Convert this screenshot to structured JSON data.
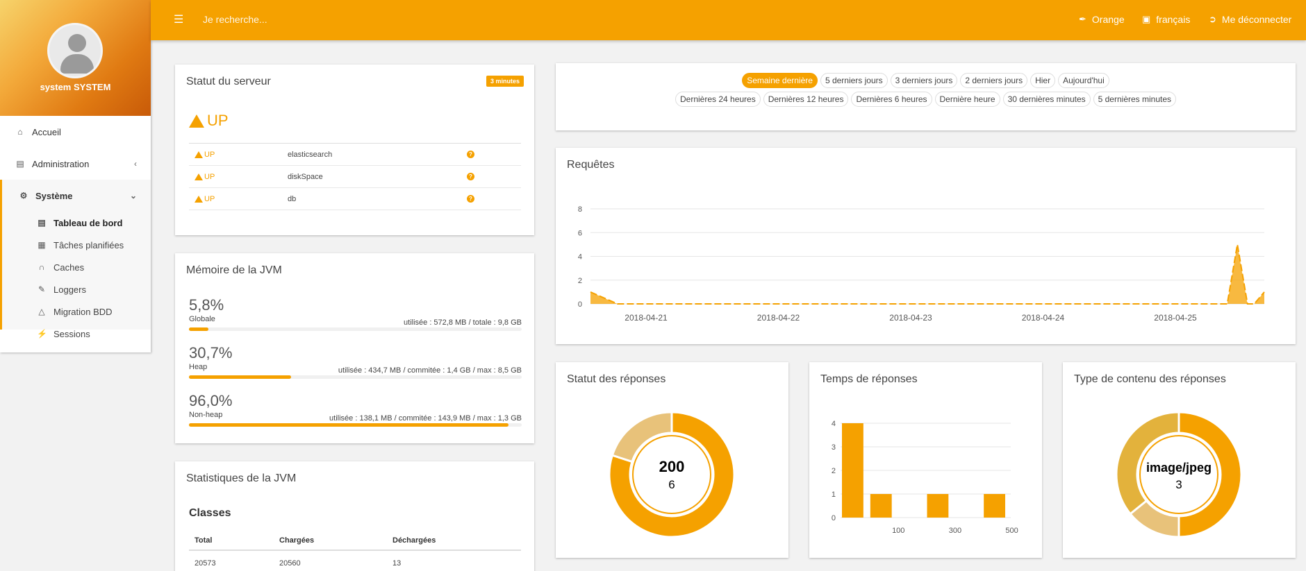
{
  "sidebar": {
    "user_name": "system SYSTEM",
    "items": [
      {
        "label": "Accueil",
        "icon": "home-icon"
      },
      {
        "label": "Administration",
        "icon": "list-icon"
      },
      {
        "label": "Système",
        "icon": "cogs-icon"
      }
    ],
    "sub_items": [
      {
        "label": "Tableau de bord",
        "icon": "bar-chart-icon",
        "active": true
      },
      {
        "label": "Tâches planifiées",
        "icon": "calendar-icon"
      },
      {
        "label": "Caches",
        "icon": "magnet-icon"
      },
      {
        "label": "Loggers",
        "icon": "pencil-icon"
      },
      {
        "label": "Migration BDD",
        "icon": "flask-icon"
      },
      {
        "label": "Sessions",
        "icon": "plug-icon"
      }
    ]
  },
  "header": {
    "search_placeholder": "Je recherche...",
    "theme_label": "Orange",
    "language_label": "français",
    "logout_label": "Me déconnecter"
  },
  "server_status": {
    "title": "Statut du serveur",
    "refresh_badge": "3 minutes",
    "overall": "UP",
    "checks": [
      {
        "status": "UP",
        "name": "elasticsearch"
      },
      {
        "status": "UP",
        "name": "diskSpace"
      },
      {
        "status": "UP",
        "name": "db"
      }
    ]
  },
  "jvm_memory": {
    "title": "Mémoire de la JVM",
    "blocks": [
      {
        "pct": "5,8%",
        "label": "Globale",
        "detail": "utilisée : 572,8 MB / totale : 9,8 GB",
        "fill": 0.058
      },
      {
        "pct": "30,7%",
        "label": "Heap",
        "detail": "utilisée : 434,7 MB / commitée : 1,4 GB / max : 8,5 GB",
        "fill": 0.307
      },
      {
        "pct": "96,0%",
        "label": "Non-heap",
        "detail": "utilisée : 138,1 MB / commitée : 143,9 MB / max : 1,3 GB",
        "fill": 0.96
      }
    ]
  },
  "jvm_stats": {
    "title": "Statistiques de la JVM",
    "classes_title": "Classes",
    "headers": [
      "Total",
      "Chargées",
      "Déchargées"
    ],
    "values": [
      "20573",
      "20560",
      "13"
    ]
  },
  "time_filters": {
    "row1": [
      "Semaine dernière",
      "5 derniers jours",
      "3 derniers jours",
      "2 derniers jours",
      "Hier",
      "Aujourd'hui"
    ],
    "row2": [
      "Dernières 24 heures",
      "Dernières 12 heures",
      "Dernières 6 heures",
      "Dernière heure",
      "30 dernières minutes",
      "5 dernières minutes"
    ],
    "active": "Semaine dernière"
  },
  "requests_card": {
    "title": "Requêtes"
  },
  "response_status_card": {
    "title": "Statut des réponses",
    "center_label": "200",
    "center_value": "6"
  },
  "response_time_card": {
    "title": "Temps de réponses"
  },
  "content_type_card": {
    "title": "Type de contenu des réponses",
    "center_label": "image/jpeg",
    "center_value": "3"
  },
  "colors": {
    "accent": "#f5a100",
    "accent_light": "#e8c27a"
  },
  "chart_data": [
    {
      "type": "area",
      "title": "Requêtes",
      "x_ticks": [
        "2018-04-21",
        "2018-04-22",
        "2018-04-23",
        "2018-04-24",
        "2018-04-25"
      ],
      "y_ticks": [
        "0",
        "2",
        "4",
        "6",
        "8"
      ],
      "ylim": [
        0,
        8
      ],
      "series": [
        {
          "x": [
            0,
            0.04,
            0.2,
            0.4,
            0.6,
            0.8,
            0.93,
            0.945,
            0.96,
            0.975,
            0.985,
            1.0
          ],
          "values": [
            1,
            0,
            0,
            0,
            0,
            0,
            0,
            0,
            5,
            0,
            0,
            1
          ]
        }
      ]
    },
    {
      "type": "pie",
      "title": "Statut des réponses",
      "slices": [
        {
          "label": "200",
          "value": 6
        },
        {
          "label": "other",
          "value": 1.5
        }
      ]
    },
    {
      "type": "bar",
      "title": "Temps de réponses",
      "categories": [
        "",
        "100",
        "",
        "300",
        "",
        "500"
      ],
      "values": [
        4,
        1,
        0,
        1,
        0,
        1
      ],
      "y_ticks": [
        "0",
        "1",
        "2",
        "3",
        "4"
      ],
      "ylim": [
        0,
        4
      ]
    },
    {
      "type": "pie",
      "title": "Type de contenu des réponses",
      "slices": [
        {
          "label": "image/jpeg",
          "value": 3
        },
        {
          "label": "other-1",
          "value": 0.85
        },
        {
          "label": "other-2",
          "value": 2.15
        }
      ]
    }
  ]
}
